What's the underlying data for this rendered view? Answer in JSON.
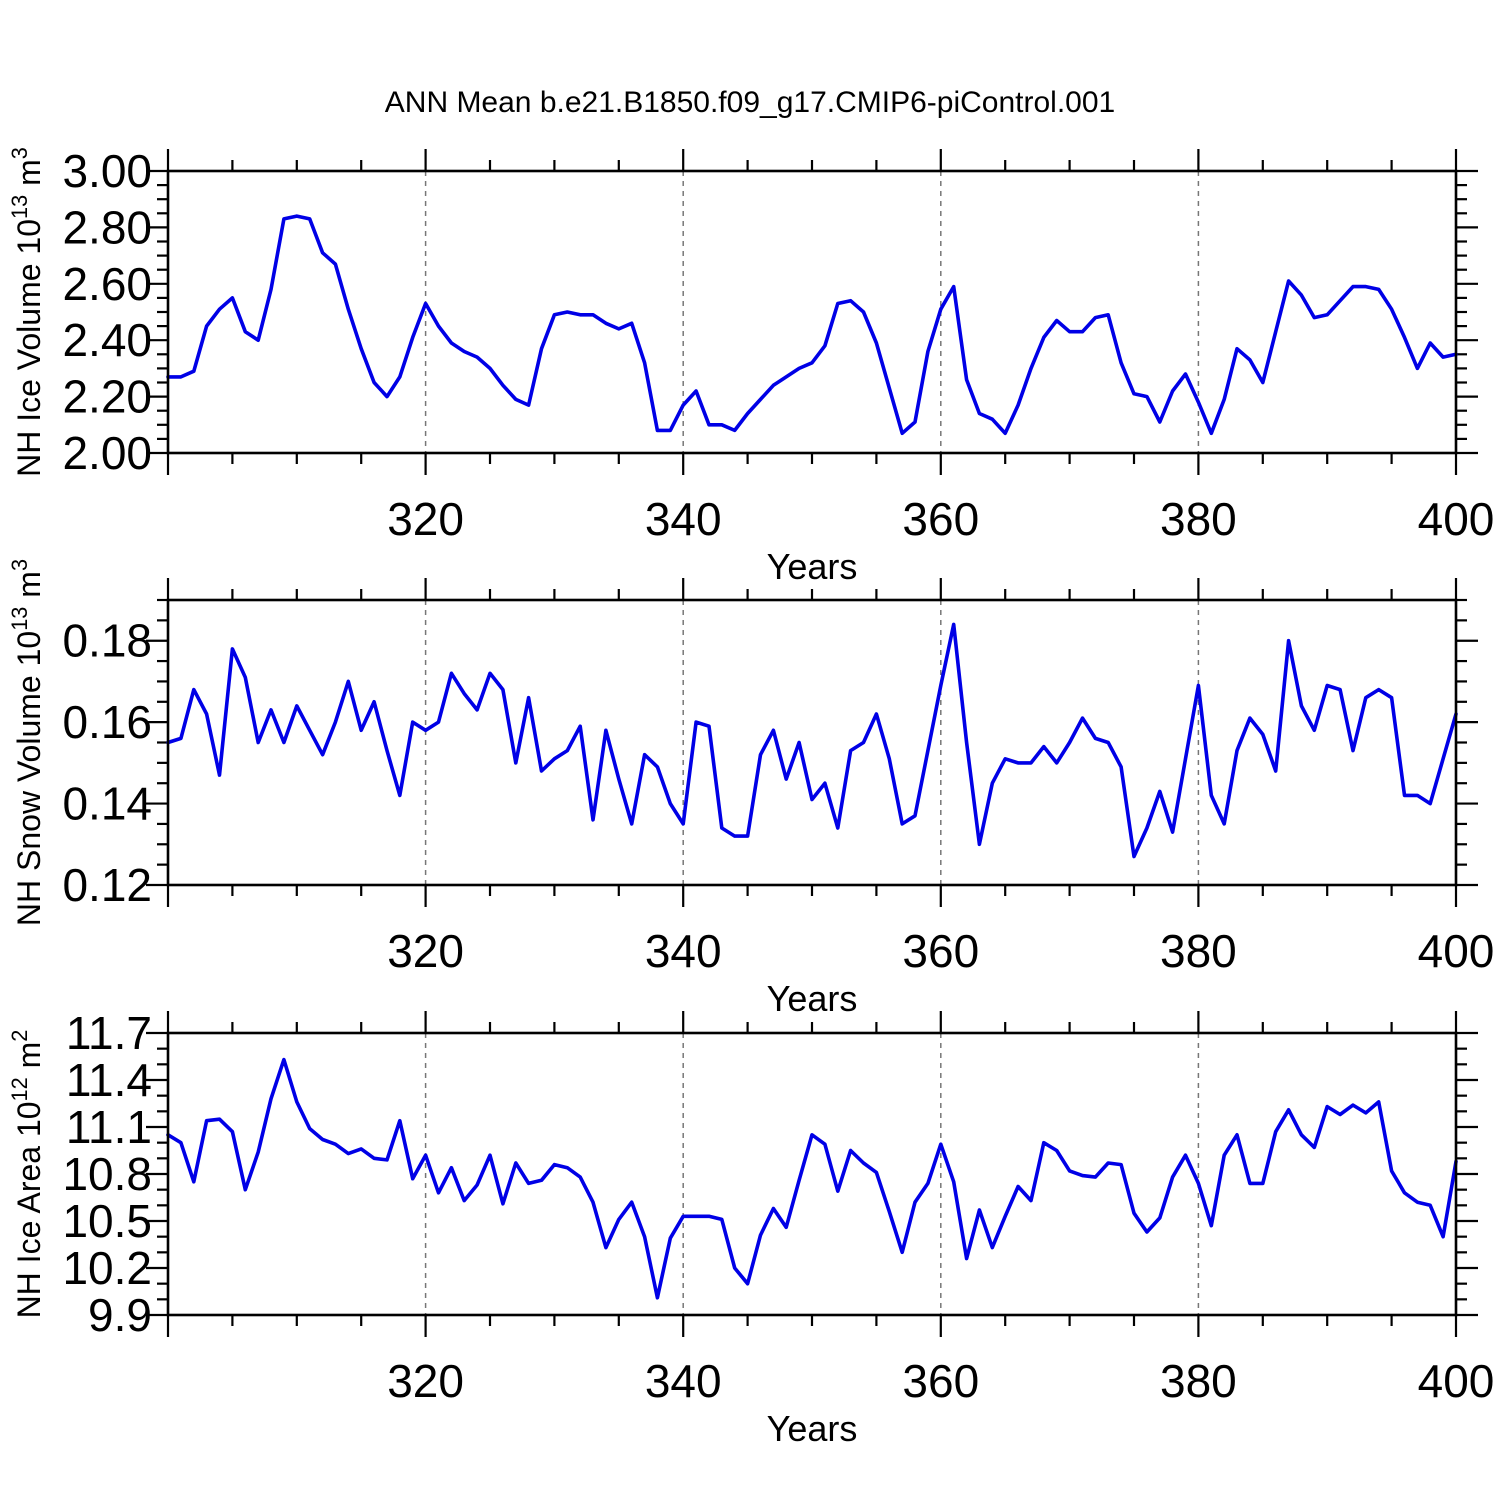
{
  "title": "ANN Mean b.e21.B1850.f09_g17.CMIP6-piControl.001",
  "colors": {
    "line": "#0000e6",
    "axis": "#000000",
    "gridline": "#777777",
    "text": "#000000",
    "background": "#ffffff"
  },
  "x_axis": {
    "label": "Years",
    "range": [
      300,
      400
    ],
    "major_ticks": [
      300,
      320,
      340,
      360,
      380,
      400
    ],
    "labeled_ticks": [
      320,
      340,
      360,
      380,
      400
    ],
    "tick_labels": [
      "320",
      "340",
      "360",
      "380",
      "400"
    ],
    "minor_step": 5,
    "dashed_gridlines": [
      320,
      340,
      360,
      380
    ]
  },
  "years": [
    300,
    301,
    302,
    303,
    304,
    305,
    306,
    307,
    308,
    309,
    310,
    311,
    312,
    313,
    314,
    315,
    316,
    317,
    318,
    319,
    320,
    321,
    322,
    323,
    324,
    325,
    326,
    327,
    328,
    329,
    330,
    331,
    332,
    333,
    334,
    335,
    336,
    337,
    338,
    339,
    340,
    341,
    342,
    343,
    344,
    345,
    346,
    347,
    348,
    349,
    350,
    351,
    352,
    353,
    354,
    355,
    356,
    357,
    358,
    359,
    360,
    361,
    362,
    363,
    364,
    365,
    366,
    367,
    368,
    369,
    370,
    371,
    372,
    373,
    374,
    375,
    376,
    377,
    378,
    379,
    380,
    381,
    382,
    383,
    384,
    385,
    386,
    387,
    388,
    389,
    390,
    391,
    392,
    393,
    394,
    395,
    396,
    397,
    398,
    399,
    400
  ],
  "chart_data": [
    {
      "type": "line",
      "name": "nh-ice-volume",
      "ylabel": "NH Ice Volume 10^13 m^3",
      "ylabel_parts": [
        {
          "t": "NH Ice Volume 10",
          "sup": false
        },
        {
          "t": "13",
          "sup": true
        },
        {
          "t": " m",
          "sup": false
        },
        {
          "t": "3",
          "sup": true
        }
      ],
      "ylim": [
        2.0,
        3.0
      ],
      "y_major_ticks": [
        2.0,
        2.2,
        2.4,
        2.6,
        2.8,
        3.0
      ],
      "y_tick_labels": [
        "2.00",
        "2.20",
        "2.40",
        "2.60",
        "2.80",
        "3.00"
      ],
      "y_minor_step": 0.05,
      "x": {
        "start": 300,
        "end": 400,
        "step": 1
      },
      "values": [
        2.27,
        2.27,
        2.29,
        2.45,
        2.51,
        2.55,
        2.43,
        2.4,
        2.58,
        2.83,
        2.84,
        2.83,
        2.71,
        2.67,
        2.51,
        2.37,
        2.25,
        2.2,
        2.27,
        2.41,
        2.53,
        2.45,
        2.39,
        2.36,
        2.34,
        2.3,
        2.24,
        2.19,
        2.17,
        2.37,
        2.49,
        2.5,
        2.49,
        2.49,
        2.46,
        2.44,
        2.46,
        2.32,
        2.08,
        2.08,
        2.17,
        2.22,
        2.1,
        2.1,
        2.08,
        2.14,
        2.19,
        2.24,
        2.27,
        2.3,
        2.32,
        2.38,
        2.53,
        2.54,
        2.5,
        2.39,
        2.23,
        2.07,
        2.11,
        2.36,
        2.51,
        2.59,
        2.26,
        2.14,
        2.12,
        2.07,
        2.17,
        2.3,
        2.41,
        2.47,
        2.43,
        2.43,
        2.48,
        2.49,
        2.32,
        2.21,
        2.2,
        2.11,
        2.22,
        2.28,
        2.18,
        2.07,
        2.19,
        2.37,
        2.33,
        2.25,
        2.43,
        2.61,
        2.56,
        2.48,
        2.49,
        2.54,
        2.59,
        2.59,
        2.58,
        2.51,
        2.41,
        2.3,
        2.39,
        2.34,
        2.35
      ]
    },
    {
      "type": "line",
      "name": "nh-snow-volume",
      "ylabel": "NH Snow Volume 10^13 m^3",
      "ylabel_parts": [
        {
          "t": "NH Snow Volume 10",
          "sup": false
        },
        {
          "t": "13",
          "sup": true
        },
        {
          "t": " m",
          "sup": false
        },
        {
          "t": "3",
          "sup": true
        }
      ],
      "ylim": [
        0.12,
        0.19
      ],
      "y_major_ticks": [
        0.12,
        0.14,
        0.16,
        0.18
      ],
      "y_tick_labels": [
        "0.12",
        "0.14",
        "0.16",
        "0.18"
      ],
      "y_minor_step": 0.005,
      "x": {
        "start": 300,
        "end": 400,
        "step": 1
      },
      "values": [
        0.155,
        0.156,
        0.168,
        0.162,
        0.147,
        0.178,
        0.171,
        0.155,
        0.163,
        0.155,
        0.164,
        0.158,
        0.152,
        0.16,
        0.17,
        0.158,
        0.165,
        0.153,
        0.142,
        0.16,
        0.158,
        0.16,
        0.172,
        0.167,
        0.163,
        0.172,
        0.168,
        0.15,
        0.166,
        0.148,
        0.151,
        0.153,
        0.159,
        0.136,
        0.158,
        0.146,
        0.135,
        0.152,
        0.149,
        0.14,
        0.135,
        0.16,
        0.159,
        0.134,
        0.132,
        0.132,
        0.152,
        0.158,
        0.146,
        0.155,
        0.141,
        0.145,
        0.134,
        0.153,
        0.155,
        0.162,
        0.151,
        0.135,
        0.137,
        0.153,
        0.169,
        0.184,
        0.155,
        0.13,
        0.145,
        0.151,
        0.15,
        0.15,
        0.154,
        0.15,
        0.155,
        0.161,
        0.156,
        0.155,
        0.149,
        0.127,
        0.134,
        0.143,
        0.133,
        0.151,
        0.169,
        0.142,
        0.135,
        0.153,
        0.161,
        0.157,
        0.148,
        0.18,
        0.164,
        0.158,
        0.169,
        0.168,
        0.153,
        0.166,
        0.168,
        0.166,
        0.142,
        0.142,
        0.14,
        0.151,
        0.162
      ]
    },
    {
      "type": "line",
      "name": "nh-ice-area",
      "ylabel": "NH Ice Area 10^12 m^2",
      "ylabel_parts": [
        {
          "t": "NH Ice Area 10",
          "sup": false
        },
        {
          "t": "12",
          "sup": true
        },
        {
          "t": " m",
          "sup": false
        },
        {
          "t": "2",
          "sup": true
        }
      ],
      "ylim": [
        9.9,
        11.7
      ],
      "y_major_ticks": [
        9.9,
        10.2,
        10.5,
        10.8,
        11.1,
        11.4,
        11.7
      ],
      "y_tick_labels": [
        "9.9",
        "10.2",
        "10.5",
        "10.8",
        "11.1",
        "11.4",
        "11.7"
      ],
      "y_minor_step": 0.1,
      "x": {
        "start": 300,
        "end": 400,
        "step": 1
      },
      "values": [
        11.05,
        11.0,
        10.75,
        11.14,
        11.15,
        11.07,
        10.7,
        10.94,
        11.28,
        11.53,
        11.26,
        11.09,
        11.02,
        10.99,
        10.93,
        10.96,
        10.9,
        10.89,
        11.14,
        10.77,
        10.92,
        10.68,
        10.84,
        10.63,
        10.73,
        10.92,
        10.61,
        10.87,
        10.74,
        10.76,
        10.86,
        10.84,
        10.78,
        10.62,
        10.33,
        10.51,
        10.62,
        10.4,
        10.01,
        10.39,
        10.53,
        10.53,
        10.53,
        10.51,
        10.2,
        10.1,
        10.41,
        10.58,
        10.46,
        10.76,
        11.05,
        10.99,
        10.69,
        10.95,
        10.87,
        10.81,
        10.56,
        10.3,
        10.62,
        10.74,
        10.99,
        10.75,
        10.26,
        10.57,
        10.33,
        10.53,
        10.72,
        10.63,
        11.0,
        10.95,
        10.82,
        10.79,
        10.78,
        10.87,
        10.86,
        10.55,
        10.43,
        10.52,
        10.78,
        10.92,
        10.74,
        10.47,
        10.92,
        11.05,
        10.74,
        10.74,
        11.07,
        11.21,
        11.05,
        10.97,
        11.23,
        11.18,
        11.24,
        11.19,
        11.26,
        10.82,
        10.68,
        10.62,
        10.6,
        10.4,
        10.88
      ]
    }
  ]
}
